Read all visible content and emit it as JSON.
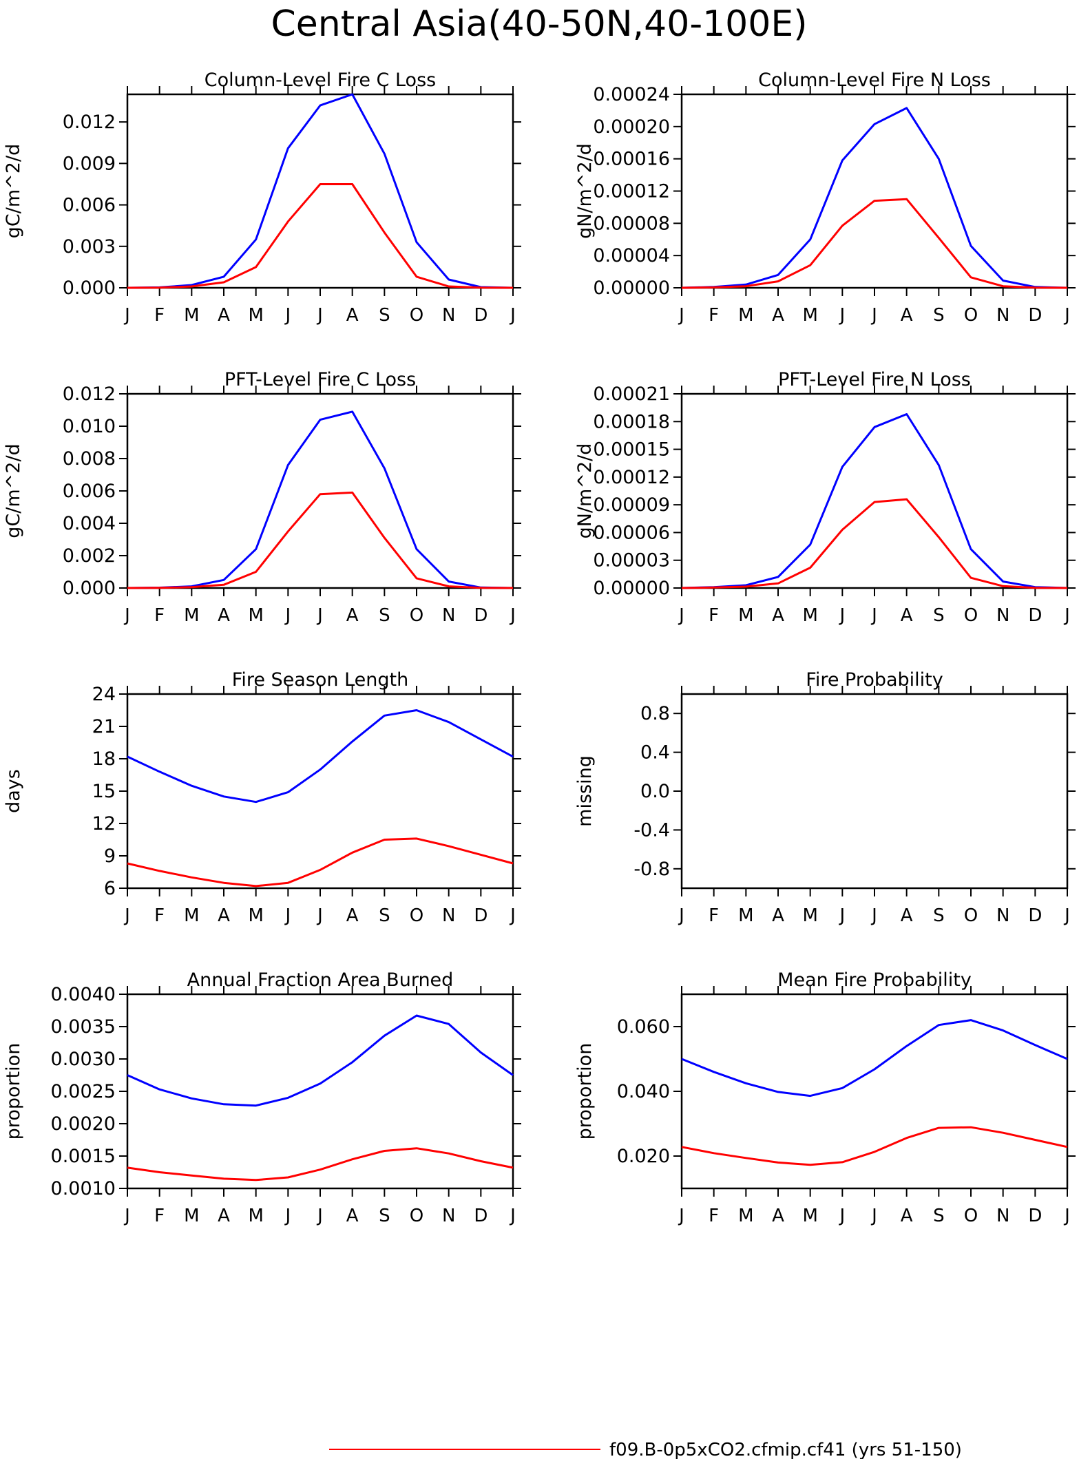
{
  "title": "Central Asia(40-50N,40-100E)",
  "months": [
    "J",
    "F",
    "M",
    "A",
    "M",
    "J",
    "J",
    "A",
    "S",
    "O",
    "N",
    "D",
    "J"
  ],
  "colors": {
    "blue": "#0000ff",
    "red": "#ff0000",
    "axis": "#000000"
  },
  "legend": {
    "red_label": "f09.B-0p5xCO2.cfmip.cf41 (yrs 51-150)"
  },
  "chart_data": [
    {
      "type": "line",
      "title": "Column-Level Fire C Loss",
      "ylabel": "gC/m^2/d",
      "ylim": [
        0,
        0.014
      ],
      "yticks": [
        0,
        0.003,
        0.006,
        0.009,
        0.012
      ],
      "ytick_labels": [
        "0.000",
        "0.003",
        "0.006",
        "0.009",
        "0.012"
      ],
      "series": [
        {
          "color": "#0000ff",
          "values": [
            0.0,
            3e-05,
            0.0002,
            0.0008,
            0.0035,
            0.0101,
            0.0132,
            0.014,
            0.0097,
            0.0033,
            0.0006,
            5e-05,
            0.0
          ]
        },
        {
          "color": "#ff0000",
          "values": [
            0.0,
            1e-05,
            0.0001,
            0.0004,
            0.0015,
            0.0048,
            0.0075,
            0.0075,
            0.004,
            0.0008,
            0.0001,
            1e-05,
            0.0
          ]
        }
      ]
    },
    {
      "type": "line",
      "title": "Column-Level Fire N Loss",
      "ylabel": "gN/m^2/d",
      "ylim": [
        0,
        0.00024
      ],
      "yticks": [
        0,
        4e-05,
        8e-05,
        0.00012,
        0.00016,
        0.0002,
        0.00024
      ],
      "ytick_labels": [
        "0.00000",
        "0.00004",
        "0.00008",
        "0.00012",
        "0.00016",
        "0.00020",
        "0.00024"
      ],
      "series": [
        {
          "color": "#0000ff",
          "values": [
            0.0,
            1e-06,
            4e-06,
            1.6e-05,
            6e-05,
            0.000158,
            0.000203,
            0.000223,
            0.00016,
            5.2e-05,
            9e-06,
            1e-06,
            0.0
          ]
        },
        {
          "color": "#ff0000",
          "values": [
            0.0,
            5e-07,
            2e-06,
            8e-06,
            2.8e-05,
            7.7e-05,
            0.000108,
            0.00011,
            6.2e-05,
            1.3e-05,
            2e-06,
            2e-07,
            0.0
          ]
        }
      ]
    },
    {
      "type": "line",
      "title": "PFT-Level Fire C Loss",
      "ylabel": "gC/m^2/d",
      "ylim": [
        0,
        0.012
      ],
      "yticks": [
        0,
        0.002,
        0.004,
        0.006,
        0.008,
        0.01,
        0.012
      ],
      "ytick_labels": [
        "0.000",
        "0.002",
        "0.004",
        "0.006",
        "0.008",
        "0.010",
        "0.012"
      ],
      "series": [
        {
          "color": "#0000ff",
          "values": [
            0.0,
            2e-05,
            0.0001,
            0.0005,
            0.0024,
            0.0076,
            0.0104,
            0.0109,
            0.0074,
            0.0024,
            0.0004,
            3e-05,
            0.0
          ]
        },
        {
          "color": "#ff0000",
          "values": [
            0.0,
            1e-05,
            5e-05,
            0.0002,
            0.001,
            0.0035,
            0.0058,
            0.0059,
            0.0031,
            0.0006,
            0.0001,
            1e-05,
            0.0
          ]
        }
      ]
    },
    {
      "type": "line",
      "title": "PFT-Level Fire N Loss",
      "ylabel": "gN/m^2/d",
      "ylim": [
        0,
        0.00021
      ],
      "yticks": [
        0,
        3e-05,
        6e-05,
        9e-05,
        0.00012,
        0.00015,
        0.00018,
        0.00021
      ],
      "ytick_labels": [
        "0.00000",
        "0.00003",
        "0.00006",
        "0.00009",
        "0.00012",
        "0.00015",
        "0.00018",
        "0.00021"
      ],
      "series": [
        {
          "color": "#0000ff",
          "values": [
            0.0,
            1e-06,
            3e-06,
            1.2e-05,
            4.7e-05,
            0.000131,
            0.000174,
            0.000188,
            0.000133,
            4.2e-05,
            7e-06,
            1e-06,
            0.0
          ]
        },
        {
          "color": "#ff0000",
          "values": [
            0.0,
            5e-07,
            1.5e-06,
            5e-06,
            2.2e-05,
            6.3e-05,
            9.3e-05,
            9.6e-05,
            5.5e-05,
            1.1e-05,
            2e-06,
            2e-07,
            0.0
          ]
        }
      ]
    },
    {
      "type": "line",
      "title": "Fire Season Length",
      "ylabel": "days",
      "ylim": [
        6,
        24
      ],
      "yticks": [
        6,
        9,
        12,
        15,
        18,
        21,
        24
      ],
      "ytick_labels": [
        "6",
        "9",
        "12",
        "15",
        "18",
        "21",
        "24"
      ],
      "series": [
        {
          "color": "#0000ff",
          "values": [
            18.2,
            16.8,
            15.5,
            14.5,
            14.0,
            14.9,
            17.0,
            19.6,
            22.0,
            22.5,
            21.4,
            19.8,
            18.2
          ]
        },
        {
          "color": "#ff0000",
          "values": [
            8.3,
            7.6,
            7.0,
            6.5,
            6.2,
            6.5,
            7.7,
            9.3,
            10.5,
            10.6,
            9.9,
            9.1,
            8.3
          ]
        }
      ]
    },
    {
      "type": "line",
      "title": "Fire Probability",
      "ylabel": "missing",
      "ylim": [
        -1.0,
        1.0
      ],
      "yticks": [
        -0.8,
        -0.4,
        0.0,
        0.4,
        0.8
      ],
      "ytick_labels": [
        "-0.8",
        "-0.4",
        "0.0",
        "0.4",
        "0.8"
      ],
      "series": []
    },
    {
      "type": "line",
      "title": "Annual Fraction Area Burned",
      "ylabel": "proportion",
      "ylim": [
        0.001,
        0.004
      ],
      "yticks": [
        0.001,
        0.0015,
        0.002,
        0.0025,
        0.003,
        0.0035,
        0.004
      ],
      "ytick_labels": [
        "0.0010",
        "0.0015",
        "0.0020",
        "0.0025",
        "0.0030",
        "0.0035",
        "0.0040"
      ],
      "series": [
        {
          "color": "#0000ff",
          "values": [
            0.00275,
            0.00253,
            0.00239,
            0.0023,
            0.00228,
            0.0024,
            0.00262,
            0.00295,
            0.00336,
            0.00367,
            0.00354,
            0.0031,
            0.00275
          ]
        },
        {
          "color": "#ff0000",
          "values": [
            0.00132,
            0.00125,
            0.0012,
            0.00115,
            0.00113,
            0.00117,
            0.00129,
            0.00145,
            0.00158,
            0.00162,
            0.00154,
            0.00142,
            0.00132
          ]
        }
      ]
    },
    {
      "type": "line",
      "title": "Mean Fire Probability",
      "ylabel": "proportion",
      "ylim": [
        0.01,
        0.07
      ],
      "yticks": [
        0.02,
        0.04,
        0.06
      ],
      "ytick_labels": [
        "0.020",
        "0.040",
        "0.060"
      ],
      "series": [
        {
          "color": "#0000ff",
          "values": [
            0.05,
            0.046,
            0.0425,
            0.0398,
            0.0386,
            0.041,
            0.0468,
            0.054,
            0.0605,
            0.062,
            0.0588,
            0.0543,
            0.05
          ]
        },
        {
          "color": "#ff0000",
          "values": [
            0.0228,
            0.0209,
            0.0194,
            0.018,
            0.0173,
            0.0181,
            0.0213,
            0.0256,
            0.0287,
            0.0289,
            0.0272,
            0.025,
            0.0228
          ]
        }
      ]
    }
  ]
}
